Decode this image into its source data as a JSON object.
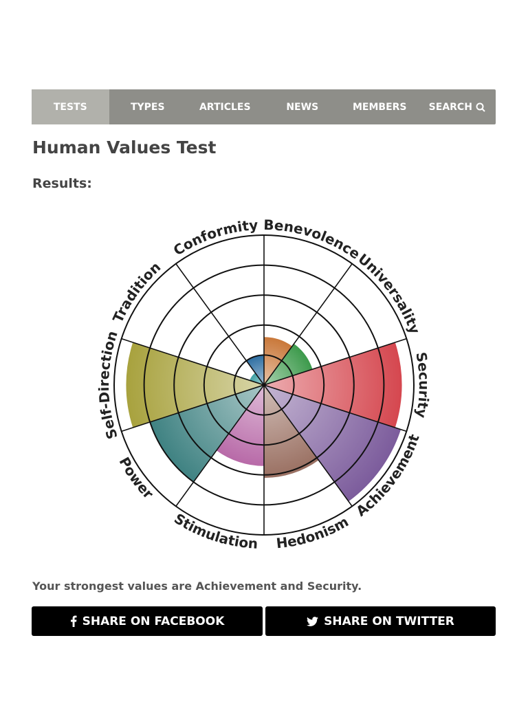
{
  "nav": [
    "TESTS",
    "TYPES",
    "ARTICLES",
    "NEWS",
    "MEMBERS",
    "SEARCH"
  ],
  "title": "Human Values Test",
  "subtitle": "Results:",
  "chart_data": {
    "type": "polar-area",
    "categories": [
      "Benevolence",
      "Universality",
      "Security",
      "Achievement",
      "Hedonism",
      "Stimulation",
      "Power",
      "Self-Direction",
      "Tradition",
      "Conformity"
    ],
    "values": [
      1.6,
      1.7,
      4.6,
      4.8,
      3.1,
      2.7,
      4.0,
      4.6,
      0.5,
      1.0
    ],
    "colors": [
      "#c9783a",
      "#3d9a4c",
      "#d5474f",
      "#7c5c9c",
      "#9a7062",
      "#b86aa8",
      "#3f8282",
      "#a8a23e",
      "#3ea0a4",
      "#2f6fa2"
    ],
    "rlim": [
      0,
      5
    ],
    "rticks": [
      1,
      2,
      3,
      4,
      5
    ]
  },
  "summary": "Your strongest values are Achievement and Security.",
  "buttons": [
    "SHARE ON FACEBOOK",
    "SHARE ON TWITTER"
  ]
}
